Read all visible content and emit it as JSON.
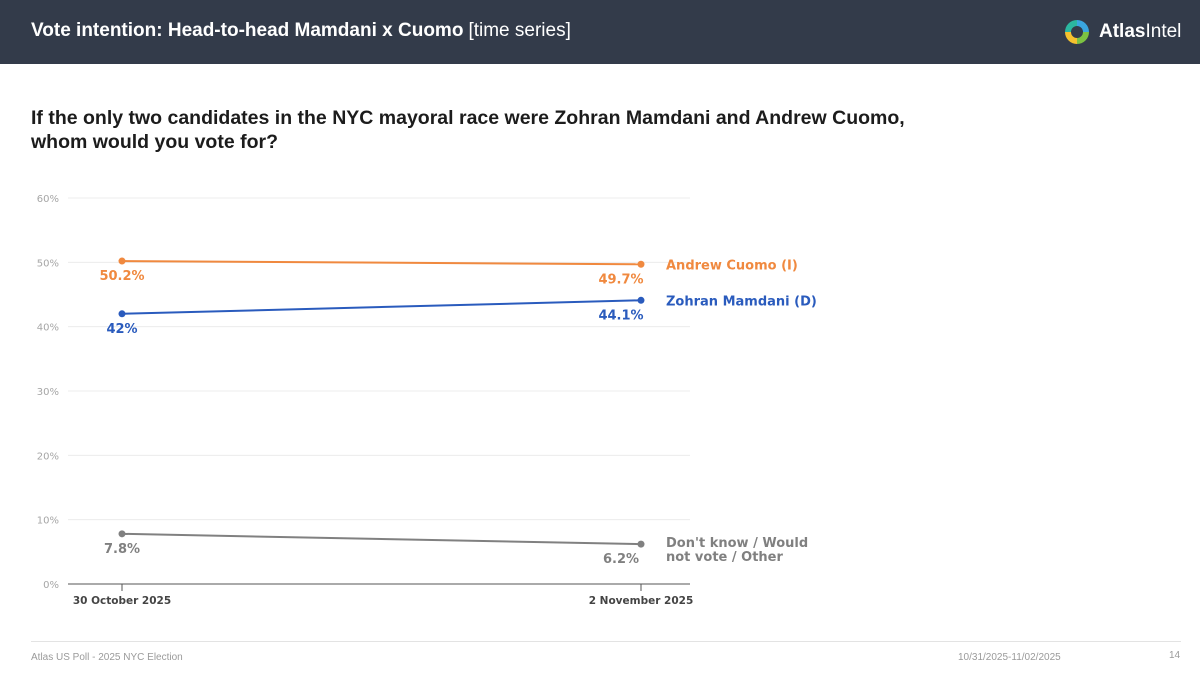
{
  "header": {
    "title": "Vote intention: Head-to-head Mamdani x Cuomo",
    "title_suffix": "[time series]",
    "brand_part1": "Atlas",
    "brand_part2": "Intel"
  },
  "question": "If the only two candidates in the NYC mayoral race were Zohran Mamdani and Andrew Cuomo, whom would you vote for?",
  "chart_data": {
    "type": "line",
    "title": "",
    "xlabel": "",
    "ylabel": "",
    "ylim": [
      0,
      60
    ],
    "yticks": [
      0,
      10,
      20,
      30,
      40,
      50,
      60
    ],
    "ytick_labels": [
      "0%",
      "10%",
      "20%",
      "30%",
      "40%",
      "50%",
      "60%"
    ],
    "grid": true,
    "categories": [
      "30 October 2025",
      "2 November 2025"
    ],
    "series": [
      {
        "name": "Andrew Cuomo (I)",
        "values": [
          50.2,
          49.7
        ],
        "value_labels": [
          "50.2%",
          "49.7%"
        ],
        "color": "#f0893f"
      },
      {
        "name": "Zohran Mamdani (D)",
        "values": [
          42,
          44.1
        ],
        "value_labels": [
          "42%",
          "44.1%"
        ],
        "color": "#2a5bbd"
      },
      {
        "name": "Don't know / Would not vote / Other",
        "name_lines": [
          "Don't know / Would",
          "not vote / Other"
        ],
        "values": [
          7.8,
          6.2
        ],
        "value_labels": [
          "7.8%",
          "6.2%"
        ],
        "color": "#808080"
      }
    ]
  },
  "footer": {
    "source": "Atlas US Poll - 2025 NYC Election",
    "date_range": "10/31/2025-11/02/2025",
    "page": "14"
  }
}
